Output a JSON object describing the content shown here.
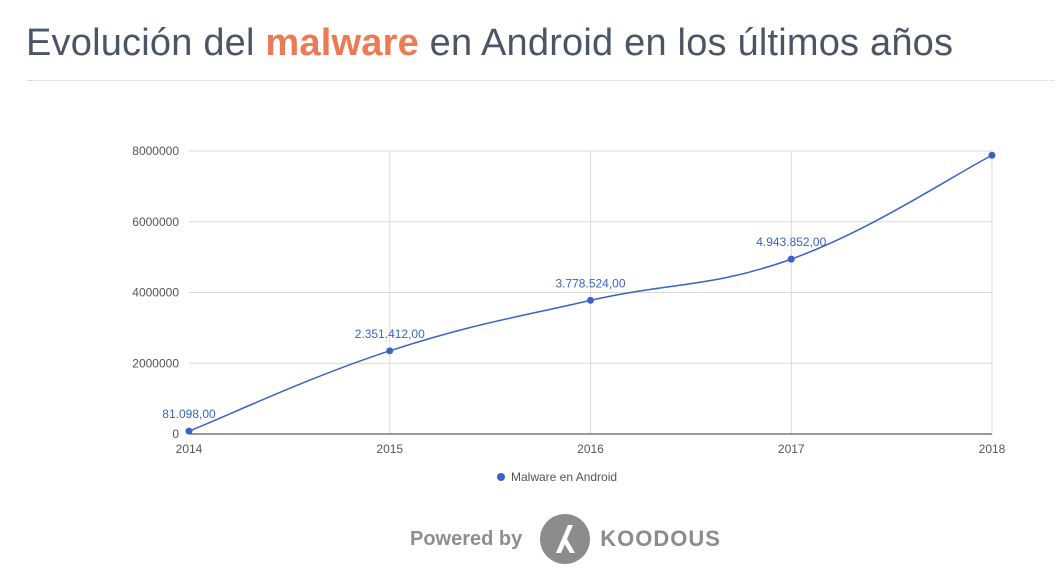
{
  "title": {
    "before": "Evolución del ",
    "highlight": "malware",
    "after": " en Android en los últimos años"
  },
  "chart_data": {
    "type": "line",
    "x": [
      "2014",
      "2015",
      "2016",
      "2017",
      "2018"
    ],
    "series": [
      {
        "name": "Malware en Android",
        "values": [
          81098,
          2351412,
          3778524,
          4943852,
          7880000
        ],
        "labels": [
          "81.098,00",
          "2.351.412,00",
          "3.778.524,00",
          "4.943.852,00",
          ""
        ]
      }
    ],
    "yticks": [
      0,
      2000000,
      4000000,
      6000000,
      8000000
    ],
    "ylim": [
      0,
      8000000
    ],
    "grid": true,
    "legend": "bottom",
    "colors": {
      "line": "#3a62c9",
      "grid": "#d9d9d9",
      "axis": "#333333"
    }
  },
  "footer": {
    "powered_by": "Powered by",
    "brand": "KOODOUS",
    "logo_icon": "koodous-logo-icon"
  }
}
